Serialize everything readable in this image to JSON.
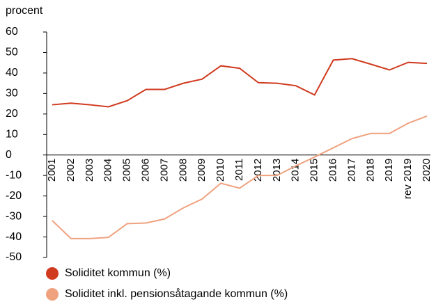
{
  "chart_data": {
    "type": "line",
    "y_label": "procent",
    "categories": [
      "2001",
      "2002",
      "2003",
      "2004",
      "2005",
      "2006",
      "2007",
      "2008",
      "2009",
      "2010",
      "2011",
      "2012",
      "2013",
      "2014",
      "2015",
      "2016",
      "2017",
      "2018",
      "2019",
      "rev 2019",
      "2020"
    ],
    "series": [
      {
        "name": "Soliditet kommun (%)",
        "color": "#d03a1e",
        "values": [
          24.5,
          25.3,
          24.5,
          23.5,
          26.5,
          32,
          32,
          35,
          37,
          43.5,
          42.3,
          35.3,
          35,
          33.8,
          29.3,
          46.3,
          47,
          44.3,
          41.5,
          45.2,
          44.7
        ]
      },
      {
        "name": "Soliditet inkl. pensionsåtagande kommun (%)",
        "color": "#f0a27f",
        "values": [
          -32,
          -40.8,
          -40.8,
          -40.2,
          -33.5,
          -33.2,
          -31.2,
          -25.8,
          -21.5,
          -13.8,
          -16.2,
          -10,
          -10,
          -5.3,
          -1,
          3.5,
          8,
          10.5,
          10.5,
          15.5,
          19
        ]
      }
    ],
    "ylim": [
      -50,
      60
    ],
    "yticks": [
      -50,
      -40,
      -30,
      -20,
      -10,
      0,
      10,
      20,
      30,
      40,
      50,
      60
    ],
    "tick_color": "#000000",
    "negative_tick_color": "#d03a1e",
    "legend": "bottom-left"
  }
}
